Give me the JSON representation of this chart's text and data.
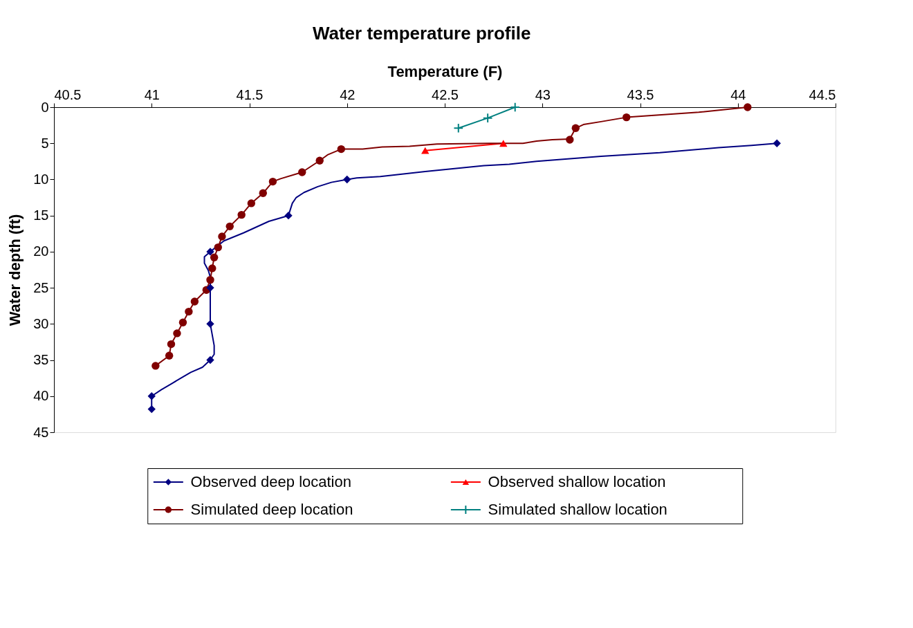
{
  "chart_data": {
    "type": "line",
    "title": "Water temperature profile",
    "xlabel": "Temperature (F)",
    "ylabel": "Water depth (ft)",
    "xlim": [
      40.5,
      44.5
    ],
    "xticks": [
      40.5,
      41,
      41.5,
      42,
      42.5,
      43,
      43.5,
      44,
      44.5
    ],
    "ylim": [
      45,
      0
    ],
    "yticks": [
      0,
      5,
      10,
      15,
      20,
      25,
      30,
      35,
      40,
      45
    ],
    "grid": false,
    "legend": "bottom",
    "series": [
      {
        "name": "Observed deep location",
        "color": "#000080",
        "type": "scatter",
        "marker": "diamond",
        "x": [
          44.2,
          42,
          41.7,
          41.3,
          41.3,
          41.3,
          41.3,
          41,
          41
        ],
        "values": [
          5,
          10,
          15,
          20,
          25,
          30,
          35,
          40,
          41.8
        ]
      },
      {
        "name": "Simulated deep location",
        "color": "#800000",
        "type": "scatter",
        "marker": "circle",
        "x": [
          44.05,
          43.43,
          43.17,
          43.14,
          41.97,
          41.86,
          41.77,
          41.62,
          41.57,
          41.51,
          41.46,
          41.4,
          41.36,
          41.34,
          41.32,
          41.31,
          41.3,
          41.28,
          41.22,
          41.19,
          41.16,
          41.13,
          41.1,
          41.09,
          41.02
        ],
        "values": [
          0,
          1.4,
          2.9,
          4.5,
          5.8,
          7.4,
          9.0,
          10.3,
          11.9,
          13.3,
          14.9,
          16.5,
          17.9,
          19.4,
          20.8,
          22.3,
          23.9,
          25.3,
          26.9,
          28.3,
          29.8,
          31.3,
          32.8,
          34.4,
          35.8
        ]
      },
      {
        "name": "Observed shallow location",
        "color": "#ff0000",
        "marker": "triangle",
        "x": [
          42.8,
          42.4
        ],
        "values": [
          5,
          6
        ]
      },
      {
        "name": "Simulated shallow location",
        "color": "#008080",
        "marker": "cross",
        "x": [
          42.86,
          42.72,
          42.57
        ],
        "values": [
          0,
          1.5,
          2.9
        ]
      },
      {
        "color": "#000080",
        "marker": "none",
        "x": [
          44.2,
          44.07,
          43.9,
          43.6,
          43.3,
          42.97,
          42.83,
          42.7,
          42.4,
          42.17,
          42.05,
          42,
          41.92,
          41.85,
          41.78,
          41.74,
          41.72,
          41.7,
          41.6,
          41.47,
          41.37,
          41.3,
          41.27,
          41.27,
          41.29,
          41.3,
          41.3,
          41.3,
          41.32,
          41.32,
          41.3,
          41.26,
          41.2,
          41.15,
          41.1,
          41.05,
          41,
          41
        ],
        "values": [
          5,
          5.3,
          5.6,
          6.3,
          6.8,
          7.5,
          7.9,
          8.1,
          8.9,
          9.6,
          9.8,
          10,
          10.4,
          11.0,
          11.8,
          12.5,
          13.3,
          15,
          15.8,
          17.4,
          18.5,
          20,
          20.7,
          21.6,
          22.6,
          23.5,
          25,
          30,
          33,
          34.2,
          35,
          36,
          36.7,
          37.5,
          38.3,
          39.1,
          40,
          41.8
        ]
      },
      {
        "color": "#800000",
        "marker": "none",
        "x": [
          44.05,
          43.8,
          43.43,
          43.3,
          43.21,
          43.17,
          43.14,
          43.05,
          42.97,
          42.9,
          42.73,
          42.46,
          42.32,
          42.18,
          42.08,
          41.97,
          41.9,
          41.86,
          41.77,
          41.66,
          41.62,
          41.57,
          41.51,
          41.46,
          41.4,
          41.36,
          41.34,
          41.32,
          41.31,
          41.3,
          41.28,
          41.22,
          41.19,
          41.16,
          41.13,
          41.1,
          41.09,
          41.02
        ],
        "values": [
          0,
          0.7,
          1.4,
          2.0,
          2.4,
          2.9,
          4.4,
          4.5,
          4.7,
          5.0,
          5.0,
          5.1,
          5.4,
          5.5,
          5.8,
          5.8,
          6.6,
          7.4,
          9.0,
          9.9,
          10.3,
          11.9,
          13.3,
          14.9,
          16.5,
          17.9,
          19.4,
          20.8,
          22.3,
          23.9,
          25.3,
          26.9,
          28.3,
          29.8,
          31.3,
          32.8,
          34.4,
          35.8
        ]
      }
    ]
  }
}
